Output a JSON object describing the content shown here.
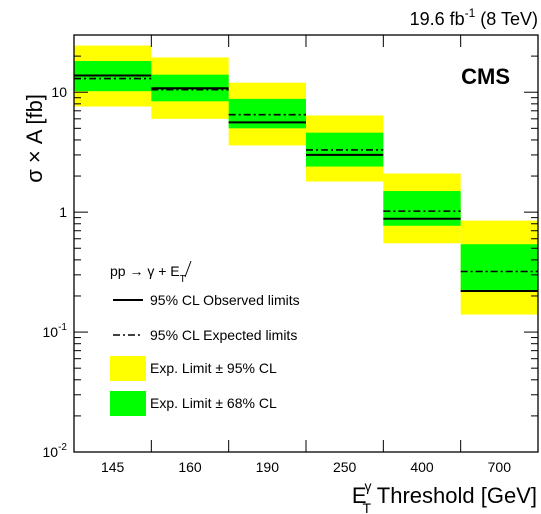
{
  "chart_data": {
    "type": "bar",
    "lumi_label": "19.6 fb",
    "lumi_sup": "-1",
    "lumi_suffix": " (8 TeV)",
    "experiment": "CMS",
    "xlabel_base": "E",
    "xlabel_sup": "γ",
    "xlabel_sub": "T",
    "xlabel_rest": " Threshold [GeV]",
    "ylabel": "σ × A [fb]",
    "y_scale": "log",
    "ylim": [
      0.01,
      30
    ],
    "y_ticks": [
      {
        "value": 0.01,
        "base": "10",
        "exp": "-2"
      },
      {
        "value": 0.1,
        "base": "10",
        "exp": "-1"
      },
      {
        "value": 1,
        "base": "1",
        "exp": ""
      },
      {
        "value": 10,
        "base": "10",
        "exp": ""
      }
    ],
    "categories": [
      "145",
      "160",
      "190",
      "250",
      "400",
      "700"
    ],
    "observed": [
      13.8,
      10.8,
      5.6,
      3.0,
      0.88,
      0.22
    ],
    "expected": [
      13.0,
      10.5,
      6.5,
      3.3,
      1.02,
      0.32
    ],
    "band68": [
      [
        10.2,
        18.2
      ],
      [
        8.4,
        14.0
      ],
      [
        5.0,
        8.8
      ],
      [
        2.4,
        4.6
      ],
      [
        0.77,
        1.5
      ],
      [
        0.22,
        0.54
      ]
    ],
    "band95": [
      [
        7.6,
        24.5
      ],
      [
        6.0,
        19.5
      ],
      [
        3.6,
        12.0
      ],
      [
        1.8,
        6.4
      ],
      [
        0.55,
        2.1
      ],
      [
        0.14,
        0.85
      ]
    ],
    "colors": {
      "band68": "#00ff00",
      "band95": "#ffff00",
      "line": "#000000"
    },
    "legend": {
      "process_pre": "pp → γ + E",
      "process_sub": "T",
      "observed": "95% CL Observed limits",
      "expected": "95% CL Expected limits",
      "band95": "Exp. Limit ± 95% CL",
      "band68": "Exp. Limit ± 68% CL"
    }
  }
}
